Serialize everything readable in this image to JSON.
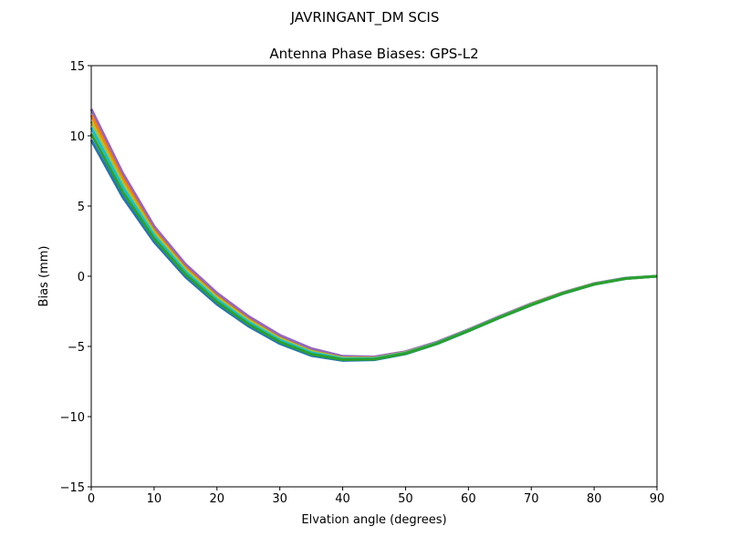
{
  "chart_data": {
    "type": "line",
    "suptitle": "JAVRINGANT_DM   SCIS",
    "title": "Antenna Phase Biases: GPS-L2",
    "xlabel": "Elvation angle (degrees)",
    "ylabel": "Bias (mm)",
    "xlim": [
      0,
      90
    ],
    "ylim": [
      -15,
      15
    ],
    "xticks": [
      0,
      10,
      20,
      30,
      40,
      50,
      60,
      70,
      80,
      90
    ],
    "yticks": [
      -15,
      -10,
      -5,
      0,
      5,
      10,
      15
    ],
    "ytick_labels": [
      "−15",
      "−10",
      "−5",
      "0",
      "5",
      "10",
      "15"
    ],
    "grid": false,
    "x": [
      0,
      5,
      10,
      15,
      20,
      25,
      30,
      35,
      40,
      45,
      50,
      55,
      60,
      65,
      70,
      75,
      80,
      85,
      90
    ],
    "series": [
      {
        "name": "s1",
        "color": "#1f77b4",
        "values": [
          9.7,
          5.65,
          2.45,
          -0.05,
          -2.0,
          -3.55,
          -4.8,
          -5.65,
          -6.0,
          -5.95,
          -5.53,
          -4.81,
          -3.9,
          -2.95,
          -2.05,
          -1.24,
          -0.58,
          -0.17,
          0
        ]
      },
      {
        "name": "s2",
        "color": "#ff7f0e",
        "values": [
          11.46,
          7.01,
          3.33,
          0.67,
          -1.36,
          -2.99,
          -4.32,
          -5.25,
          -5.76,
          -5.79,
          -5.4,
          -4.71,
          -3.82,
          -2.87,
          -1.97,
          -1.18,
          -0.53,
          -0.14,
          0
        ]
      },
      {
        "name": "s3",
        "color": "#9467bd",
        "values": [
          11.9,
          7.35,
          3.55,
          0.85,
          -1.2,
          -2.85,
          -4.2,
          -5.15,
          -5.7,
          -5.75,
          -5.37,
          -4.69,
          -3.8,
          -2.85,
          -1.95,
          -1.16,
          -0.52,
          -0.13,
          0
        ]
      },
      {
        "name": "s4",
        "color": "#bcbd22",
        "values": [
          11.02,
          6.67,
          3.11,
          0.49,
          -1.52,
          -3.13,
          -4.44,
          -5.35,
          -5.82,
          -5.83,
          -5.43,
          -4.74,
          -3.84,
          -2.89,
          -1.99,
          -1.19,
          -0.54,
          -0.15,
          0
        ]
      },
      {
        "name": "s5",
        "color": "#17becf",
        "values": [
          10.58,
          6.33,
          2.89,
          0.31,
          -1.68,
          -3.27,
          -4.56,
          -5.45,
          -5.88,
          -5.87,
          -5.47,
          -4.76,
          -3.86,
          -2.91,
          -2.01,
          -1.21,
          -0.56,
          -0.15,
          0
        ]
      },
      {
        "name": "s6",
        "color": "#2ca02c",
        "values": [
          10.14,
          5.99,
          2.67,
          0.13,
          -1.84,
          -3.41,
          -4.68,
          -5.55,
          -5.94,
          -5.91,
          -5.5,
          -4.79,
          -3.88,
          -2.93,
          -2.03,
          -1.22,
          -0.57,
          -0.16,
          0
        ]
      }
    ]
  }
}
